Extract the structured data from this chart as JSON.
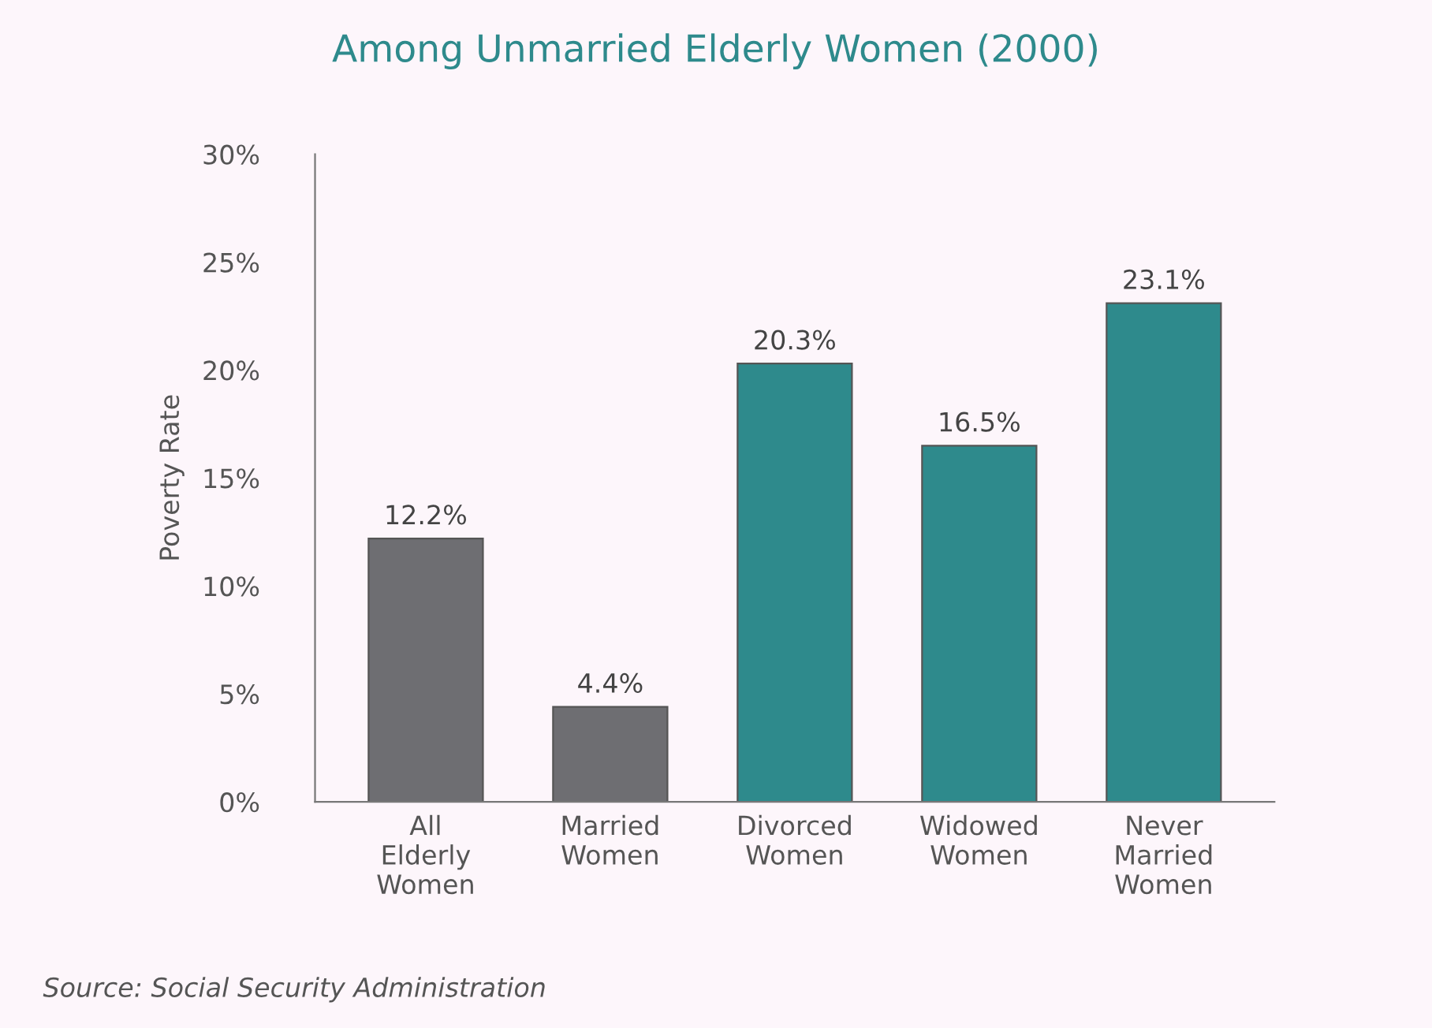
{
  "chart_data": {
    "type": "bar",
    "title": "Among Unmarried Elderly Women (2000)",
    "ylabel": "Poverty Rate",
    "categories": [
      "All\nElderly\nWomen",
      "Married\nWomen",
      "Divorced\nWomen",
      "Widowed\nWomen",
      "Never\nMarried\nWomen"
    ],
    "values": [
      12.2,
      4.4,
      20.3,
      16.5,
      23.1
    ],
    "colors": [
      "#6e6e72",
      "#6e6e72",
      "#2e8a8c",
      "#2e8a8c",
      "#2e8a8c"
    ],
    "value_labels": [
      "12.2%",
      "4.4%",
      "20.3%",
      "16.5%",
      "23.1%"
    ],
    "ylim": [
      0,
      30
    ],
    "yticks": [
      {
        "value": 0,
        "label": "0%"
      },
      {
        "value": 5,
        "label": "5%"
      },
      {
        "value": 10,
        "label": "10%"
      },
      {
        "value": 15,
        "label": "15%"
      },
      {
        "value": 20,
        "label": "20%"
      },
      {
        "value": 25,
        "label": "25%"
      },
      {
        "value": 30,
        "label": "30%"
      }
    ],
    "grid": false,
    "legend": false,
    "annotations": [
      "Source: Social Security Administration"
    ]
  }
}
